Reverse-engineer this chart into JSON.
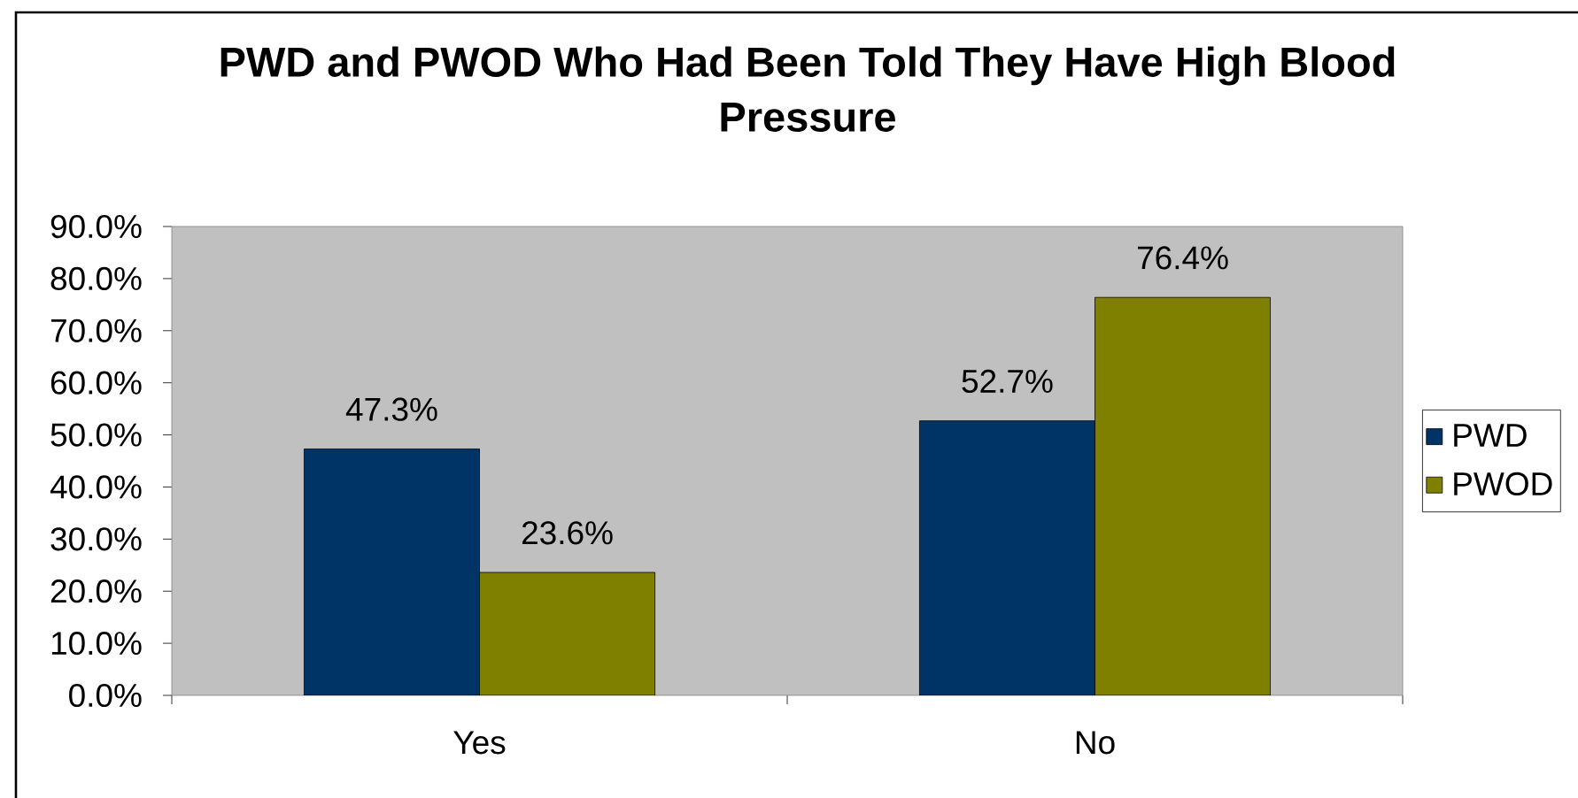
{
  "chart_data": {
    "type": "bar",
    "title": "PWD and PWOD Who Had Been Told They Have High Blood Pressure",
    "categories": [
      "Yes",
      "No"
    ],
    "series": [
      {
        "name": "PWD",
        "color": "#003366",
        "values": [
          47.3,
          52.7
        ],
        "value_labels": [
          "47.3%",
          "52.7%"
        ]
      },
      {
        "name": "PWOD",
        "color": "#808000",
        "values": [
          23.6,
          76.4
        ],
        "value_labels": [
          "23.6%",
          "76.4%"
        ]
      }
    ],
    "ylim": [
      0,
      90
    ],
    "yticks": [
      {
        "value": 0,
        "label": "0.0%"
      },
      {
        "value": 10,
        "label": "10.0%"
      },
      {
        "value": 20,
        "label": "20.0%"
      },
      {
        "value": 30,
        "label": "30.0%"
      },
      {
        "value": 40,
        "label": "40.0%"
      },
      {
        "value": 50,
        "label": "50.0%"
      },
      {
        "value": 60,
        "label": "60.0%"
      },
      {
        "value": 70,
        "label": "70.0%"
      },
      {
        "value": 80,
        "label": "80.0%"
      },
      {
        "value": 90,
        "label": "90.0%"
      }
    ],
    "legend": "right"
  }
}
